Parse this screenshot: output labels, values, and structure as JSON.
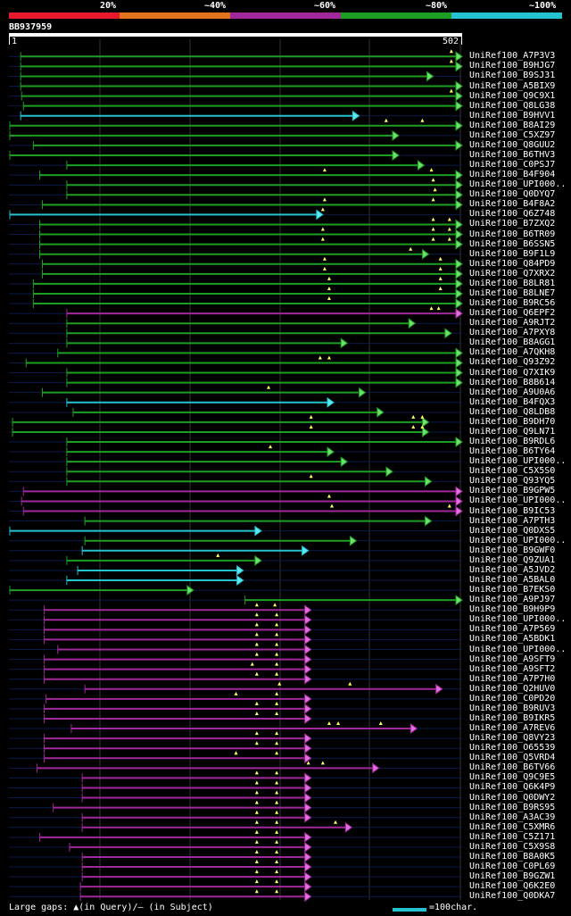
{
  "legend": {
    "labels": [
      "20%",
      "~40%",
      "~60%",
      "~80%",
      "~100%"
    ],
    "colors": [
      "#e8192c",
      "#e0731c",
      "#a1289a",
      "#1d9e22",
      "#25c2d0"
    ]
  },
  "query": {
    "id": "BB937959",
    "start": "1",
    "end": "502",
    "length": 502
  },
  "hits": [
    {
      "label": "UniRef100_A7P3V3",
      "color": "green",
      "s": 14,
      "e": 502,
      "t": [
        490
      ]
    },
    {
      "label": "UniRef100_B9HJG7",
      "color": "green",
      "s": 14,
      "e": 502,
      "t": [
        490
      ]
    },
    {
      "label": "UniRef100_B9SJ31",
      "color": "green",
      "s": 14,
      "e": 470,
      "t": []
    },
    {
      "label": "UniRef100_A5BIX9",
      "color": "green",
      "s": 14,
      "e": 502,
      "t": []
    },
    {
      "label": "UniRef100_Q9C9X1",
      "color": "green",
      "s": 15,
      "e": 502,
      "t": [
        490
      ]
    },
    {
      "label": "UniRef100_Q8LG38",
      "color": "green",
      "s": 17,
      "e": 502,
      "t": []
    },
    {
      "label": "UniRef100_B9HVV1",
      "color": "cyan",
      "s": 14,
      "e": 388,
      "t": []
    },
    {
      "label": "UniRef100_B8AI29",
      "color": "green",
      "s": 2,
      "e": 502,
      "t": [
        418,
        458
      ]
    },
    {
      "label": "UniRef100_C5XZ97",
      "color": "green",
      "s": 2,
      "e": 432,
      "t": []
    },
    {
      "label": "UniRef100_Q8GUU2",
      "color": "green",
      "s": 28,
      "e": 502,
      "t": []
    },
    {
      "label": "UniRef100_B6THV3",
      "color": "green",
      "s": 2,
      "e": 432,
      "t": []
    },
    {
      "label": "UniRef100_C0PSJ7",
      "color": "green",
      "s": 65,
      "e": 460,
      "t": []
    },
    {
      "label": "UniRef100_B4F904",
      "color": "green",
      "s": 35,
      "e": 502,
      "t": [
        350,
        468
      ]
    },
    {
      "label": "UniRef100_UPI000..",
      "color": "green",
      "s": 65,
      "e": 502,
      "t": [
        470
      ]
    },
    {
      "label": "UniRef100_Q0DYQ7",
      "color": "green",
      "s": 65,
      "e": 502,
      "t": [
        472
      ]
    },
    {
      "label": "UniRef100_B4F8A2",
      "color": "green",
      "s": 38,
      "e": 502,
      "t": [
        350,
        470
      ]
    },
    {
      "label": "UniRef100_Q6Z748",
      "color": "cyan",
      "s": 2,
      "e": 348,
      "t": [
        348
      ]
    },
    {
      "label": "UniRef100_B7ZXQ2",
      "color": "green",
      "s": 35,
      "e": 502,
      "t": [
        470,
        488
      ]
    },
    {
      "label": "UniRef100_B6TR09",
      "color": "green",
      "s": 35,
      "e": 502,
      "t": [
        348,
        470,
        488
      ]
    },
    {
      "label": "UniRef100_B6SSN5",
      "color": "green",
      "s": 35,
      "e": 502,
      "t": [
        348,
        470,
        488
      ]
    },
    {
      "label": "UniRef100_B9F1L9",
      "color": "green",
      "s": 35,
      "e": 465,
      "t": [
        445
      ]
    },
    {
      "label": "UniRef100_Q84PD9",
      "color": "green",
      "s": 38,
      "e": 502,
      "t": [
        350,
        478
      ]
    },
    {
      "label": "UniRef100_Q7XRX2",
      "color": "green",
      "s": 38,
      "e": 502,
      "t": [
        350,
        478
      ]
    },
    {
      "label": "UniRef100_B8LR81",
      "color": "green",
      "s": 28,
      "e": 502,
      "t": [
        355,
        478
      ]
    },
    {
      "label": "UniRef100_B8LNE7",
      "color": "green",
      "s": 28,
      "e": 502,
      "t": [
        355,
        478
      ]
    },
    {
      "label": "UniRef100_B9RC56",
      "color": "green",
      "s": 28,
      "e": 502,
      "t": [
        355
      ]
    },
    {
      "label": "UniRef100_Q6EPF2",
      "color": "purple",
      "s": 65,
      "e": 502,
      "t": [
        468,
        476
      ]
    },
    {
      "label": "UniRef100_A9RJT2",
      "color": "green",
      "s": 65,
      "e": 450,
      "t": []
    },
    {
      "label": "UniRef100_A7PXY8",
      "color": "green",
      "s": 65,
      "e": 490,
      "t": []
    },
    {
      "label": "UniRef100_B8AGG1",
      "color": "green",
      "s": 65,
      "e": 375,
      "t": []
    },
    {
      "label": "UniRef100_A7QKH8",
      "color": "green",
      "s": 55,
      "e": 502,
      "t": []
    },
    {
      "label": "UniRef100_Q93Z92",
      "color": "green",
      "s": 20,
      "e": 502,
      "t": [
        345,
        355
      ]
    },
    {
      "label": "UniRef100_Q7XIK9",
      "color": "green",
      "s": 65,
      "e": 502,
      "t": []
    },
    {
      "label": "UniRef100_B8B614",
      "color": "green",
      "s": 65,
      "e": 502,
      "t": []
    },
    {
      "label": "UniRef100_A9U0A6",
      "color": "green",
      "s": 38,
      "e": 395,
      "t": [
        288
      ]
    },
    {
      "label": "UniRef100_B4FQX3",
      "color": "cyan",
      "s": 65,
      "e": 360,
      "t": []
    },
    {
      "label": "UniRef100_Q8LDB8",
      "color": "green",
      "s": 72,
      "e": 415,
      "t": []
    },
    {
      "label": "UniRef100_B9DH70",
      "color": "green",
      "s": 5,
      "e": 465,
      "t": [
        335,
        448,
        458
      ]
    },
    {
      "label": "UniRef100_Q9LN71",
      "color": "green",
      "s": 5,
      "e": 465,
      "t": [
        335,
        448,
        458
      ]
    },
    {
      "label": "UniRef100_B9RDL6",
      "color": "green",
      "s": 65,
      "e": 502,
      "t": []
    },
    {
      "label": "UniRef100_B6TY64",
      "color": "green",
      "s": 65,
      "e": 360,
      "t": [
        290
      ]
    },
    {
      "label": "UniRef100_UPI000..",
      "color": "green",
      "s": 65,
      "e": 375,
      "t": []
    },
    {
      "label": "UniRef100_C5X5S0",
      "color": "green",
      "s": 65,
      "e": 425,
      "t": []
    },
    {
      "label": "UniRef100_Q93YQ5",
      "color": "green",
      "s": 65,
      "e": 468,
      "t": [
        335
      ]
    },
    {
      "label": "UniRef100_B9GPW5",
      "color": "purple",
      "s": 17,
      "e": 502,
      "t": []
    },
    {
      "label": "UniRef100_UPI000..",
      "color": "purple",
      "s": 15,
      "e": 502,
      "t": [
        355
      ]
    },
    {
      "label": "UniRef100_B9IC53",
      "color": "purple",
      "s": 17,
      "e": 502,
      "t": [
        358,
        488
      ]
    },
    {
      "label": "UniRef100_A7PTH3",
      "color": "green",
      "s": 85,
      "e": 468,
      "t": []
    },
    {
      "label": "UniRef100_Q0DXS5",
      "color": "cyan",
      "s": 2,
      "e": 280,
      "t": []
    },
    {
      "label": "UniRef100_UPI000..",
      "color": "green",
      "s": 85,
      "e": 385,
      "t": []
    },
    {
      "label": "UniRef100_B9GWF0",
      "color": "cyan",
      "s": 82,
      "e": 332,
      "t": []
    },
    {
      "label": "UniRef100_Q9ZUA1",
      "color": "green",
      "s": 65,
      "e": 280,
      "t": [
        232
      ]
    },
    {
      "label": "UniRef100_A5JVD2",
      "color": "cyan",
      "s": 77,
      "e": 260,
      "t": []
    },
    {
      "label": "UniRef100_A5BAL0",
      "color": "cyan",
      "s": 65,
      "e": 260,
      "t": []
    },
    {
      "label": "UniRef100_B7EKS0",
      "color": "green",
      "s": 2,
      "e": 205,
      "t": []
    },
    {
      "label": "UniRef100_A9PJ97",
      "color": "green",
      "s": 262,
      "e": 502,
      "t": []
    },
    {
      "label": "UniRef100_B9H9P9",
      "color": "purple",
      "s": 40,
      "e": 335,
      "t": [
        275,
        295
      ]
    },
    {
      "label": "UniRef100_UPI000..",
      "color": "purple",
      "s": 40,
      "e": 335,
      "t": [
        275,
        297
      ]
    },
    {
      "label": "UniRef100_A7P569",
      "color": "purple",
      "s": 40,
      "e": 335,
      "t": [
        275,
        297
      ]
    },
    {
      "label": "UniRef100_A5BDK1",
      "color": "purple",
      "s": 40,
      "e": 335,
      "t": [
        275,
        297
      ]
    },
    {
      "label": "UniRef100_UPI000..",
      "color": "purple",
      "s": 55,
      "e": 335,
      "t": [
        275,
        297
      ]
    },
    {
      "label": "UniRef100_A9SFT9",
      "color": "purple",
      "s": 40,
      "e": 335,
      "t": [
        275,
        297
      ]
    },
    {
      "label": "UniRef100_A9SFT2",
      "color": "purple",
      "s": 40,
      "e": 335,
      "t": [
        270,
        297
      ]
    },
    {
      "label": "UniRef100_A7P7H0",
      "color": "purple",
      "s": 40,
      "e": 335,
      "t": [
        275,
        297
      ]
    },
    {
      "label": "UniRef100_Q2HUV0",
      "color": "purple",
      "s": 85,
      "e": 480,
      "t": [
        300,
        378
      ]
    },
    {
      "label": "UniRef100_C0PD20",
      "color": "purple",
      "s": 42,
      "e": 335,
      "t": [
        252,
        297
      ]
    },
    {
      "label": "UniRef100_B9RUV3",
      "color": "purple",
      "s": 40,
      "e": 335,
      "t": [
        275,
        297
      ]
    },
    {
      "label": "UniRef100_B9IKR5",
      "color": "purple",
      "s": 40,
      "e": 335,
      "t": [
        275,
        297
      ]
    },
    {
      "label": "UniRef100_A7REV6",
      "color": "purple",
      "s": 70,
      "e": 452,
      "t": [
        355,
        365,
        412
      ]
    },
    {
      "label": "UniRef100_Q8VY23",
      "color": "purple",
      "s": 40,
      "e": 335,
      "t": [
        275,
        297
      ]
    },
    {
      "label": "UniRef100_O65539",
      "color": "purple",
      "s": 40,
      "e": 335,
      "t": [
        275,
        297
      ]
    },
    {
      "label": "UniRef100_Q5VRD4",
      "color": "purple",
      "s": 40,
      "e": 335,
      "t": [
        252,
        297
      ]
    },
    {
      "label": "UniRef100_B6TV66",
      "color": "purple",
      "s": 32,
      "e": 410,
      "t": [
        332,
        348
      ]
    },
    {
      "label": "UniRef100_Q9C9E5",
      "color": "purple",
      "s": 82,
      "e": 335,
      "t": [
        275,
        297
      ]
    },
    {
      "label": "UniRef100_Q6K4P9",
      "color": "purple",
      "s": 82,
      "e": 335,
      "t": [
        275,
        297
      ]
    },
    {
      "label": "UniRef100_Q0DWY2",
      "color": "purple",
      "s": 82,
      "e": 335,
      "t": [
        275,
        297
      ]
    },
    {
      "label": "UniRef100_B9RS95",
      "color": "purple",
      "s": 50,
      "e": 335,
      "t": [
        275,
        297
      ]
    },
    {
      "label": "UniRef100_A3AC39",
      "color": "purple",
      "s": 82,
      "e": 335,
      "t": [
        275,
        297
      ]
    },
    {
      "label": "UniRef100_C5XMR6",
      "color": "purple",
      "s": 82,
      "e": 380,
      "t": [
        275,
        297,
        362
      ]
    },
    {
      "label": "UniRef100_C5Z171",
      "color": "purple",
      "s": 35,
      "e": 335,
      "t": [
        275,
        297
      ]
    },
    {
      "label": "UniRef100_C5X9S8",
      "color": "purple",
      "s": 68,
      "e": 335,
      "t": [
        275,
        297
      ]
    },
    {
      "label": "UniRef100_B8A0K5",
      "color": "purple",
      "s": 82,
      "e": 335,
      "t": [
        275,
        297
      ]
    },
    {
      "label": "UniRef100_C0PL69",
      "color": "purple",
      "s": 82,
      "e": 335,
      "t": [
        275,
        297
      ]
    },
    {
      "label": "UniRef100_B9GZW1",
      "color": "purple",
      "s": 82,
      "e": 335,
      "t": [
        275,
        297
      ]
    },
    {
      "label": "UniRef100_Q6K2E0",
      "color": "purple",
      "s": 80,
      "e": 335,
      "t": [
        275,
        297
      ]
    },
    {
      "label": "UniRef100_Q0DKA7",
      "color": "purple",
      "s": 80,
      "e": 335,
      "t": [
        275,
        297
      ]
    }
  ],
  "footer": {
    "gaps_text": "Large gaps: ▲(in Query)/– (in Subject)",
    "scale_text": "=100char."
  }
}
